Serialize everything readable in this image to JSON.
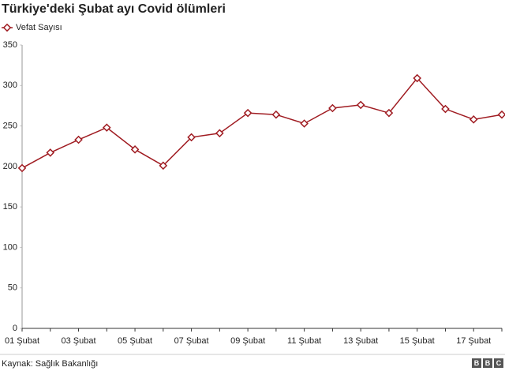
{
  "chart_data": {
    "type": "line",
    "title": "Türkiye'deki Şubat ayı Covid ölümleri",
    "categories": [
      "01 Şubat",
      null,
      "03 Şubat",
      null,
      "05 Şubat",
      null,
      "07 Şubat",
      null,
      "09 Şubat",
      null,
      "11 Şubat",
      null,
      "13 Şubat",
      null,
      "15 Şubat",
      null,
      "17 Şubat",
      null
    ],
    "series": [
      {
        "name": "Vefat Sayısı",
        "color": "#a01c22",
        "values": [
          198,
          217,
          233,
          248,
          221,
          201,
          236,
          241,
          266,
          264,
          253,
          272,
          276,
          266,
          309,
          271,
          258,
          264
        ]
      }
    ],
    "ylim": [
      0,
      350
    ],
    "yticks": [
      0,
      50,
      100,
      150,
      200,
      250,
      300,
      350
    ],
    "grid": false,
    "source": "Kaynak: Sağlık Bakanlığı",
    "logo": [
      "B",
      "B",
      "C"
    ]
  }
}
